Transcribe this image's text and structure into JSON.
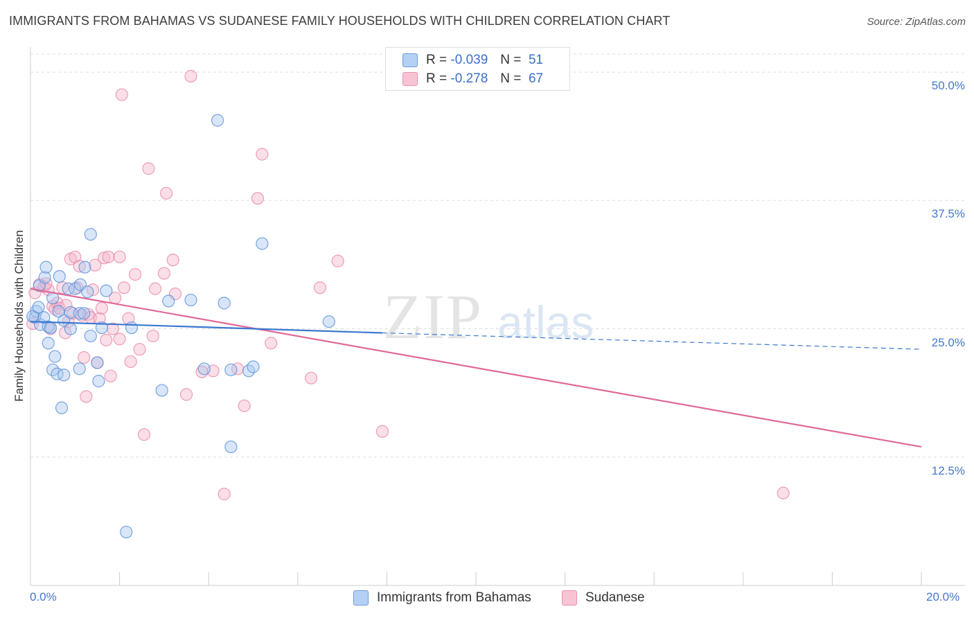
{
  "title": "IMMIGRANTS FROM BAHAMAS VS SUDANESE FAMILY HOUSEHOLDS WITH CHILDREN CORRELATION CHART",
  "source": "Source: ZipAtlas.com",
  "watermark": {
    "zip": "ZIP",
    "atlas": "atlas"
  },
  "legend": {
    "rows": [
      {
        "r_label": "R =",
        "r_value": "-0.039",
        "n_label": "N =",
        "n_value": "51"
      },
      {
        "r_label": "R =",
        "r_value": "-0.278",
        "n_label": "N =",
        "n_value": "67"
      }
    ]
  },
  "bottom_legend": [
    "Immigrants from Bahamas",
    "Sudanese"
  ],
  "colors": {
    "blue_fill": "#a8c8f0",
    "blue_stroke": "#5a8fd8",
    "blue_line": "#3a78d0",
    "pink_fill": "#f5b8cc",
    "pink_stroke": "#e880a4",
    "pink_line": "#e06898",
    "grid": "#dddddd",
    "tick_text": "#4477cc"
  },
  "chart_data": {
    "type": "scatter",
    "title": "IMMIGRANTS FROM BAHAMAS VS SUDANESE FAMILY HOUSEHOLDS WITH CHILDREN CORRELATION CHART",
    "xlabel": "",
    "ylabel": "Family Households with Children",
    "xlim": [
      0,
      20
    ],
    "ylim": [
      0,
      52.3
    ],
    "x_tick_labels": [
      "0.0%",
      "20.0%"
    ],
    "y_ticks": [
      12.5,
      25.0,
      37.5,
      50.0
    ],
    "y_tick_labels": [
      "12.5%",
      "25.0%",
      "37.5%",
      "50.0%"
    ],
    "grid": true,
    "legend_position": "top-center",
    "series": [
      {
        "name": "Immigrants from Bahamas",
        "R": -0.039,
        "N": 51,
        "trend": {
          "x0": 0.0,
          "y0": 25.7,
          "x1": 7.9,
          "y1": 24.6,
          "x_dashed_end": 20.0,
          "y_dashed_end": 23.0
        },
        "points": [
          [
            0.1,
            26.1
          ],
          [
            0.13,
            26.7
          ],
          [
            0.2,
            29.2
          ],
          [
            0.22,
            25.4
          ],
          [
            0.3,
            26.1
          ],
          [
            0.32,
            30.0
          ],
          [
            0.35,
            31.0
          ],
          [
            0.4,
            25.2
          ],
          [
            0.4,
            23.6
          ],
          [
            0.45,
            25.1
          ],
          [
            0.5,
            21.0
          ],
          [
            0.5,
            28.0
          ],
          [
            0.55,
            22.3
          ],
          [
            0.6,
            20.6
          ],
          [
            0.63,
            26.7
          ],
          [
            0.65,
            30.1
          ],
          [
            0.7,
            17.3
          ],
          [
            0.75,
            25.8
          ],
          [
            0.75,
            20.5
          ],
          [
            0.85,
            28.9
          ],
          [
            0.9,
            25.0
          ],
          [
            0.9,
            26.6
          ],
          [
            1.0,
            28.9
          ],
          [
            1.1,
            26.5
          ],
          [
            1.1,
            21.1
          ],
          [
            1.12,
            29.3
          ],
          [
            1.2,
            26.5
          ],
          [
            1.22,
            31.0
          ],
          [
            1.28,
            28.6
          ],
          [
            1.35,
            34.2
          ],
          [
            1.35,
            24.3
          ],
          [
            1.5,
            21.7
          ],
          [
            1.53,
            19.9
          ],
          [
            1.6,
            25.1
          ],
          [
            1.7,
            28.7
          ],
          [
            2.15,
            5.2
          ],
          [
            2.27,
            25.1
          ],
          [
            2.95,
            19.0
          ],
          [
            3.1,
            27.7
          ],
          [
            3.6,
            27.8
          ],
          [
            3.9,
            21.1
          ],
          [
            4.2,
            45.3
          ],
          [
            4.35,
            27.5
          ],
          [
            4.5,
            13.5
          ],
          [
            4.5,
            21.0
          ],
          [
            4.9,
            20.9
          ],
          [
            5.0,
            21.3
          ],
          [
            5.2,
            33.3
          ],
          [
            6.7,
            25.7
          ],
          [
            0.05,
            26.2
          ],
          [
            0.18,
            27.1
          ]
        ]
      },
      {
        "name": "Sudanese",
        "R": -0.278,
        "N": 67,
        "trend": {
          "x0": 0.0,
          "y0": 28.9,
          "x1": 20.0,
          "y1": 13.5
        },
        "points": [
          [
            0.1,
            28.5
          ],
          [
            0.2,
            29.3
          ],
          [
            0.3,
            29.1
          ],
          [
            0.4,
            28.8
          ],
          [
            0.45,
            25.0
          ],
          [
            0.5,
            27.2
          ],
          [
            0.55,
            26.9
          ],
          [
            0.6,
            27.5
          ],
          [
            0.65,
            27.0
          ],
          [
            0.72,
            29.0
          ],
          [
            0.78,
            24.6
          ],
          [
            0.8,
            27.3
          ],
          [
            0.85,
            25.7
          ],
          [
            0.9,
            31.8
          ],
          [
            0.95,
            26.5
          ],
          [
            1.0,
            32.0
          ],
          [
            1.05,
            29.0
          ],
          [
            1.1,
            31.1
          ],
          [
            1.15,
            26.3
          ],
          [
            1.2,
            22.2
          ],
          [
            1.25,
            18.4
          ],
          [
            1.3,
            26.4
          ],
          [
            1.35,
            26.1
          ],
          [
            1.4,
            28.8
          ],
          [
            1.45,
            31.2
          ],
          [
            1.5,
            21.7
          ],
          [
            1.55,
            26.0
          ],
          [
            1.6,
            27.0
          ],
          [
            1.65,
            31.9
          ],
          [
            1.7,
            23.9
          ],
          [
            1.75,
            32.0
          ],
          [
            1.8,
            20.4
          ],
          [
            1.85,
            25.0
          ],
          [
            1.9,
            28.0
          ],
          [
            2.0,
            32.0
          ],
          [
            2.0,
            24.0
          ],
          [
            2.05,
            47.8
          ],
          [
            2.1,
            29.0
          ],
          [
            2.2,
            26.0
          ],
          [
            2.25,
            21.8
          ],
          [
            2.35,
            30.3
          ],
          [
            2.45,
            23.0
          ],
          [
            2.55,
            14.7
          ],
          [
            2.65,
            40.6
          ],
          [
            2.75,
            24.3
          ],
          [
            2.8,
            28.9
          ],
          [
            3.0,
            30.4
          ],
          [
            3.05,
            38.2
          ],
          [
            3.2,
            31.7
          ],
          [
            3.25,
            28.4
          ],
          [
            3.5,
            18.6
          ],
          [
            3.6,
            49.6
          ],
          [
            3.85,
            20.8
          ],
          [
            4.1,
            20.9
          ],
          [
            4.35,
            8.9
          ],
          [
            4.65,
            21.1
          ],
          [
            4.8,
            17.5
          ],
          [
            5.1,
            37.7
          ],
          [
            5.2,
            42.0
          ],
          [
            5.4,
            23.6
          ],
          [
            6.3,
            20.2
          ],
          [
            6.5,
            29.0
          ],
          [
            6.9,
            31.6
          ],
          [
            7.9,
            15.0
          ],
          [
            16.9,
            9.0
          ],
          [
            0.05,
            25.5
          ],
          [
            0.35,
            29.4
          ]
        ]
      }
    ]
  }
}
